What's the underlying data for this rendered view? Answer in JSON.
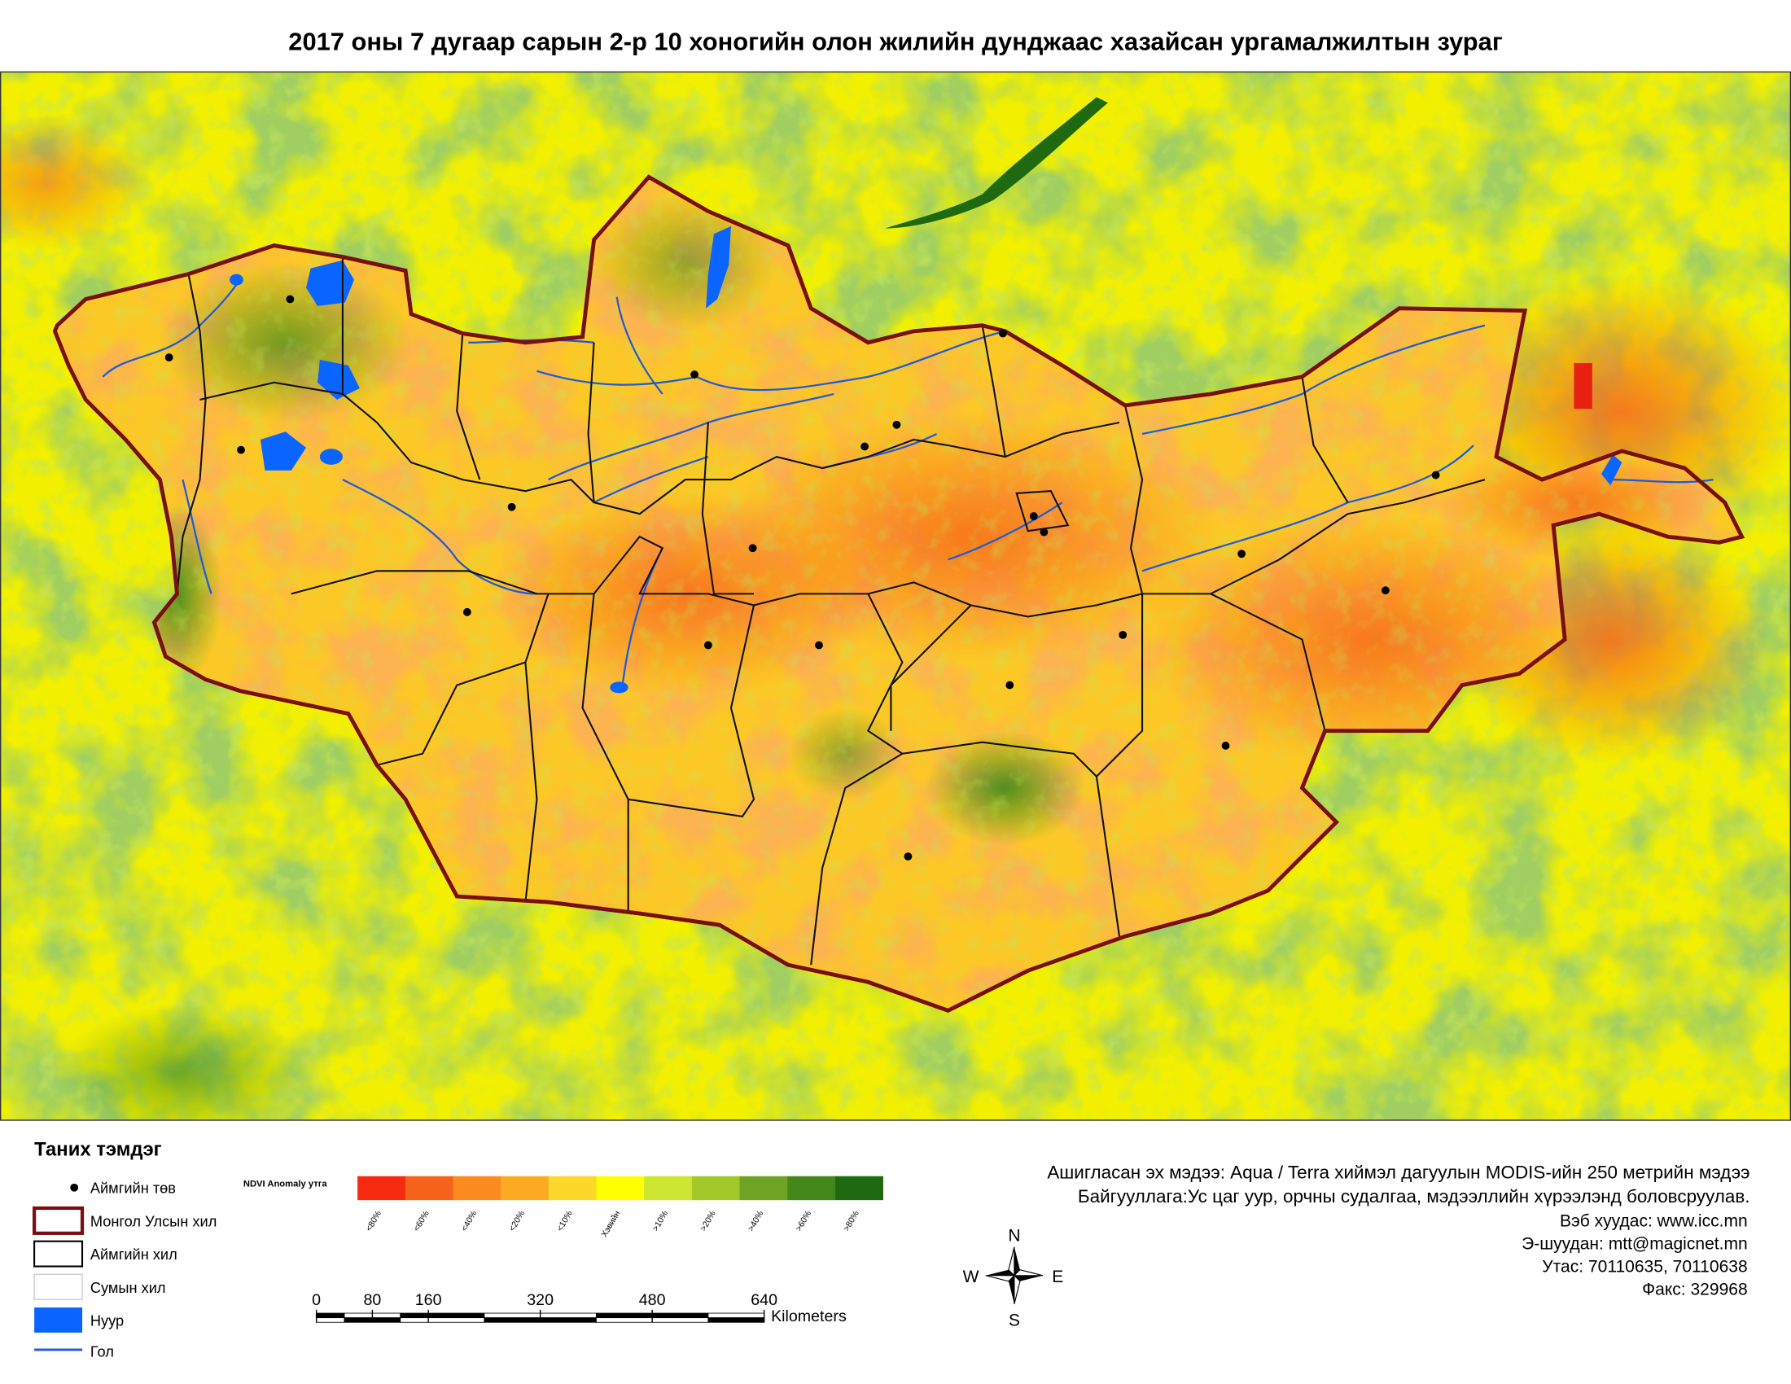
{
  "title": "2017 оны 7 дугаар сарын  2-р 10 хоногийн олон жилийн дунджаас хазайсан ургамалжилтын зураг",
  "legend": {
    "title": "Таних тэмдэг",
    "items": [
      "Аймгийн төв",
      "Монгол Улсын хил",
      "Аймгийн хил",
      "Сумын хил",
      "Нуур",
      "Гол"
    ]
  },
  "ndvi": {
    "title": "NDVI Anomaly утга",
    "classes": [
      {
        "label": "<80%",
        "color": "#f52a0e"
      },
      {
        "label": "<60%",
        "color": "#f7621a"
      },
      {
        "label": "<40%",
        "color": "#fa8b1e"
      },
      {
        "label": "<20%",
        "color": "#fcaa22"
      },
      {
        "label": "<10%",
        "color": "#fdd82a"
      },
      {
        "label": "Хэвийн",
        "color": "#ffff00"
      },
      {
        "label": ">10%",
        "color": "#cce632"
      },
      {
        "label": ">20%",
        "color": "#a2c82a"
      },
      {
        "label": ">40%",
        "color": "#6ea424"
      },
      {
        "label": ">60%",
        "color": "#44881c"
      },
      {
        "label": ">80%",
        "color": "#1f6a10"
      }
    ]
  },
  "scale_bar": {
    "ticks": [
      0,
      80,
      160,
      320,
      480,
      640
    ],
    "unit": "Kilometers"
  },
  "info": [
    "Ашигласан эх мэдээ: Aqua / Terra хиймэл дагуулын MODIS-ийн 250 метрийн мэдээ",
    "Байгууллага:Ус цаг уур, орчны судалгаа, мэдээллийн хүрээлэнд боловсруулав.",
    "Вэб хуудас: www.icc.mn",
    "Э-шуудан: mtt@magicnet.mn",
    "Утас: 70110635, 70110638",
    "Факс: 329968"
  ],
  "compass": {
    "n": "N",
    "s": "S",
    "w": "W",
    "e": "E"
  }
}
